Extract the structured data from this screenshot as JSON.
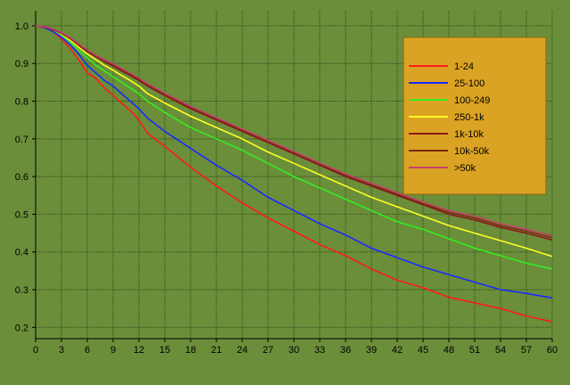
{
  "chart_data": {
    "type": "line",
    "title": "",
    "xlabel": "",
    "ylabel": "",
    "xlim": [
      0,
      60
    ],
    "ylim": [
      0.17,
      1.04
    ],
    "x_ticks": [
      0,
      3,
      6,
      9,
      12,
      15,
      18,
      21,
      24,
      27,
      30,
      33,
      36,
      39,
      42,
      45,
      48,
      51,
      54,
      57,
      60
    ],
    "y_ticks": [
      0.2,
      0.3,
      0.4,
      0.5,
      0.6,
      0.7,
      0.8,
      0.9,
      1.0
    ],
    "y_tick_labels": [
      "0.2",
      "0.3",
      "0.4",
      "0.5",
      "0.6",
      "0.7",
      "0.8",
      "0.9",
      "1.0"
    ],
    "grid": true,
    "legend_position": "top-right",
    "colors": {
      "background": "#6b8e3a",
      "grid": "#2e4a1a",
      "legend_bg": "#dba323"
    },
    "series": [
      {
        "name": "1-24",
        "color": "#ff1a1a",
        "x": [
          0,
          1,
          2,
          3,
          4,
          5,
          6,
          7,
          8,
          9,
          10,
          11,
          12,
          13,
          15,
          18,
          21,
          24,
          27,
          30,
          33,
          36,
          39,
          42,
          45,
          48,
          51,
          54,
          57,
          60
        ],
        "y": [
          1.0,
          0.995,
          0.985,
          0.965,
          0.94,
          0.91,
          0.875,
          0.86,
          0.835,
          0.815,
          0.795,
          0.775,
          0.75,
          0.715,
          0.68,
          0.625,
          0.575,
          0.53,
          0.49,
          0.455,
          0.42,
          0.39,
          0.355,
          0.325,
          0.305,
          0.28,
          0.265,
          0.25,
          0.23,
          0.215
        ]
      },
      {
        "name": "25-100",
        "color": "#1a2aff",
        "x": [
          0,
          1,
          2,
          3,
          4,
          5,
          6,
          7,
          8,
          9,
          10,
          11,
          12,
          13,
          15,
          18,
          21,
          24,
          27,
          30,
          33,
          36,
          39,
          42,
          45,
          48,
          51,
          54,
          57,
          60
        ],
        "y": [
          1.0,
          0.995,
          0.985,
          0.97,
          0.95,
          0.925,
          0.895,
          0.875,
          0.855,
          0.84,
          0.82,
          0.8,
          0.78,
          0.755,
          0.72,
          0.675,
          0.63,
          0.59,
          0.545,
          0.51,
          0.475,
          0.445,
          0.41,
          0.385,
          0.36,
          0.34,
          0.32,
          0.3,
          0.29,
          0.278
        ]
      },
      {
        "name": "100-249",
        "color": "#33ee22",
        "x": [
          0,
          1,
          2,
          3,
          4,
          5,
          6,
          7,
          8,
          9,
          10,
          11,
          12,
          13,
          15,
          18,
          21,
          24,
          27,
          30,
          33,
          36,
          39,
          42,
          45,
          48,
          51,
          54,
          57,
          60
        ],
        "y": [
          1.0,
          0.997,
          0.99,
          0.975,
          0.957,
          0.935,
          0.915,
          0.895,
          0.88,
          0.865,
          0.85,
          0.835,
          0.82,
          0.8,
          0.77,
          0.73,
          0.7,
          0.67,
          0.635,
          0.6,
          0.57,
          0.54,
          0.51,
          0.48,
          0.46,
          0.435,
          0.41,
          0.39,
          0.37,
          0.355
        ]
      },
      {
        "name": "250-1k",
        "color": "#ffff22",
        "x": [
          0,
          1,
          2,
          3,
          4,
          5,
          6,
          7,
          8,
          9,
          10,
          11,
          12,
          13,
          15,
          18,
          21,
          24,
          27,
          30,
          33,
          36,
          39,
          42,
          45,
          48,
          51,
          54,
          57,
          60
        ],
        "y": [
          1.0,
          0.997,
          0.99,
          0.978,
          0.962,
          0.943,
          0.925,
          0.91,
          0.895,
          0.882,
          0.868,
          0.855,
          0.84,
          0.82,
          0.795,
          0.76,
          0.73,
          0.7,
          0.665,
          0.635,
          0.605,
          0.575,
          0.545,
          0.52,
          0.495,
          0.47,
          0.45,
          0.43,
          0.41,
          0.388
        ]
      },
      {
        "name": "1k-10k",
        "color": "#8b1a1a",
        "x": [
          0,
          1,
          2,
          3,
          4,
          5,
          6,
          7,
          8,
          9,
          10,
          11,
          12,
          13,
          15,
          18,
          21,
          24,
          27,
          30,
          33,
          36,
          39,
          42,
          45,
          48,
          51,
          54,
          57,
          60
        ],
        "y": [
          1.0,
          0.997,
          0.99,
          0.98,
          0.966,
          0.948,
          0.932,
          0.918,
          0.905,
          0.893,
          0.88,
          0.868,
          0.855,
          0.84,
          0.815,
          0.78,
          0.75,
          0.72,
          0.69,
          0.66,
          0.63,
          0.6,
          0.575,
          0.55,
          0.525,
          0.5,
          0.485,
          0.465,
          0.45,
          0.432
        ]
      },
      {
        "name": "10k-50k",
        "color": "#7a2a10",
        "x": [
          0,
          1,
          2,
          3,
          4,
          5,
          6,
          7,
          8,
          9,
          10,
          11,
          12,
          13,
          15,
          18,
          21,
          24,
          27,
          30,
          33,
          36,
          39,
          42,
          45,
          48,
          51,
          54,
          57,
          60
        ],
        "y": [
          1.0,
          0.997,
          0.99,
          0.98,
          0.967,
          0.95,
          0.934,
          0.92,
          0.907,
          0.896,
          0.883,
          0.871,
          0.858,
          0.843,
          0.818,
          0.783,
          0.753,
          0.723,
          0.693,
          0.663,
          0.633,
          0.603,
          0.578,
          0.553,
          0.528,
          0.505,
          0.49,
          0.47,
          0.455,
          0.438
        ]
      },
      {
        "name": ">50k",
        "color": "#c2406a",
        "x": [
          0,
          1,
          2,
          3,
          4,
          5,
          6,
          7,
          8,
          9,
          10,
          11,
          12,
          13,
          15,
          18,
          21,
          24,
          27,
          30,
          33,
          36,
          39,
          42,
          45,
          48,
          51,
          54,
          57,
          60
        ],
        "y": [
          1.0,
          0.998,
          0.992,
          0.982,
          0.969,
          0.952,
          0.936,
          0.922,
          0.91,
          0.899,
          0.886,
          0.874,
          0.861,
          0.846,
          0.821,
          0.786,
          0.756,
          0.726,
          0.696,
          0.666,
          0.636,
          0.607,
          0.582,
          0.557,
          0.532,
          0.51,
          0.495,
          0.475,
          0.46,
          0.443
        ]
      }
    ]
  }
}
